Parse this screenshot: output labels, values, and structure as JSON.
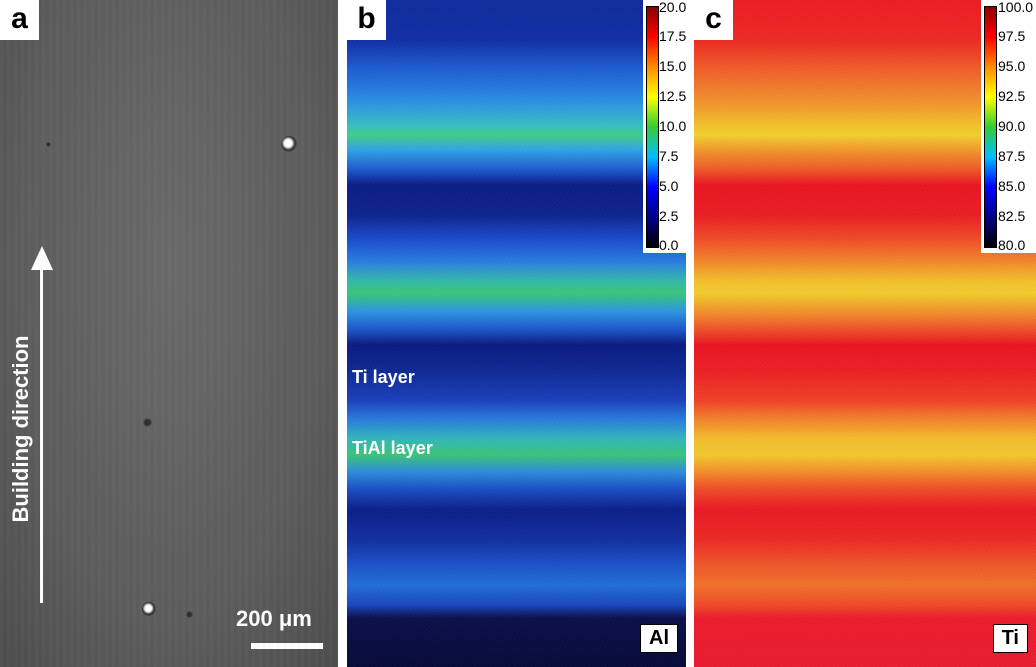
{
  "panels": {
    "a": {
      "letter": "a",
      "direction_label": "Building direction",
      "scale_label": "200 μm"
    },
    "b": {
      "letter": "b",
      "element": "Al",
      "ti_layer": "Ti layer",
      "tial_layer": "TiAl layer",
      "ticks": [
        "20.0",
        "17.5",
        "15.0",
        "12.5",
        "10.0",
        "7.5",
        "5.0",
        "2.5",
        "0.0"
      ]
    },
    "c": {
      "letter": "c",
      "element": "Ti",
      "ticks": [
        "100.0",
        "97.5",
        "95.0",
        "92.5",
        "90.0",
        "87.5",
        "85.0",
        "82.5",
        "80.0"
      ]
    }
  },
  "colors": {
    "colormap": [
      "#8b0000",
      "#ff0000",
      "#ff8c00",
      "#ffff00",
      "#32cd32",
      "#00bfff",
      "#0000ff",
      "#00008b",
      "#000000"
    ],
    "al_ti_layer": "#1b3fb0",
    "al_tial_layer": "#2aa5e8",
    "ti_ti_layer": "#f2202a",
    "ti_tial_layer": "#f6c52a"
  }
}
